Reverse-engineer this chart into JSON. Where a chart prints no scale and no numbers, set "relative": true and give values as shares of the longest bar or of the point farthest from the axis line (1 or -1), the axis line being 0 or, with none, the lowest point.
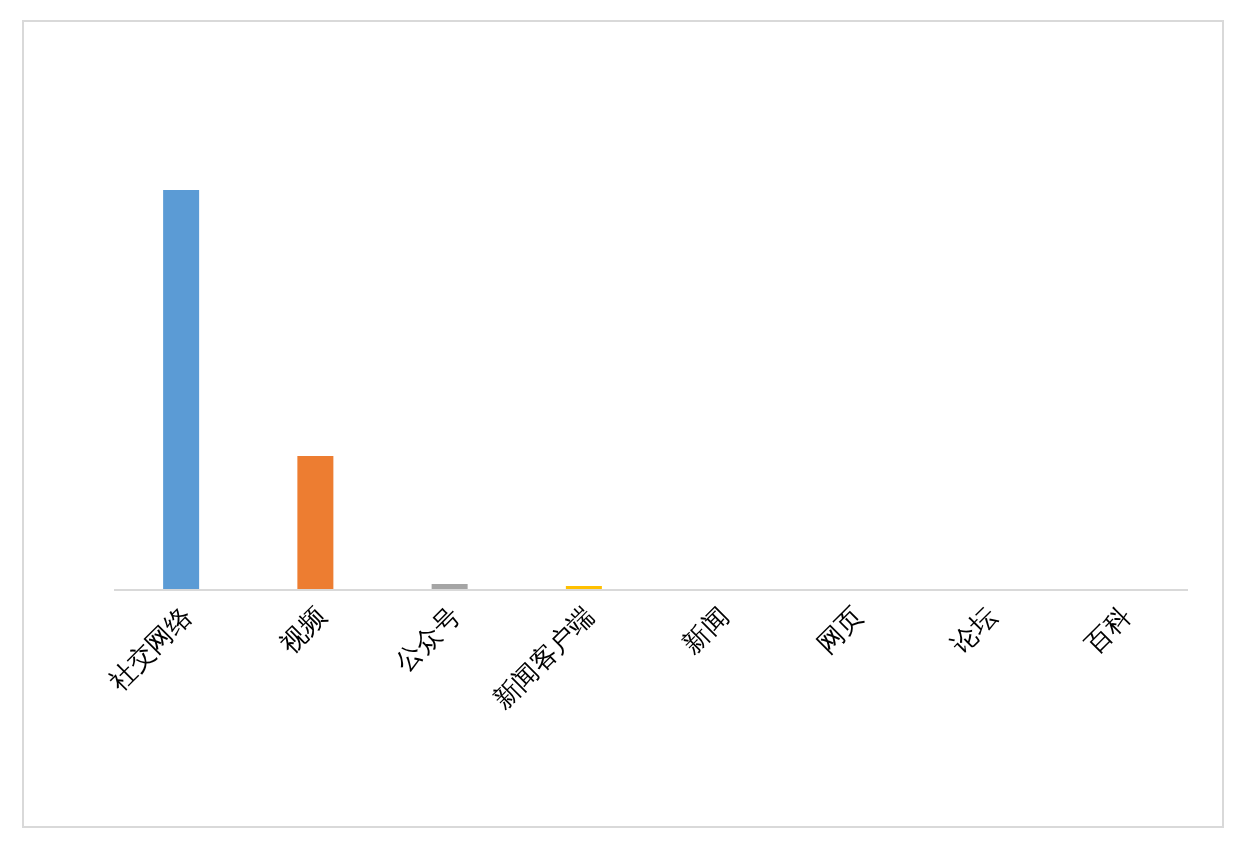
{
  "chart_data": {
    "type": "bar",
    "relative": true,
    "categories": [
      "社交网络",
      "视频",
      "公众号",
      "新闻客户端",
      "新闻",
      "网页",
      "论坛",
      "百科"
    ],
    "values": [
      1,
      0.335,
      0.015,
      0.01,
      0,
      0,
      0,
      0
    ],
    "colors": [
      "#5b9bd5",
      "#ed7d31",
      "#a5a5a5",
      "#ffc000",
      "#4472c4",
      "#70ad47",
      "#255e91",
      "#9e480e"
    ]
  }
}
